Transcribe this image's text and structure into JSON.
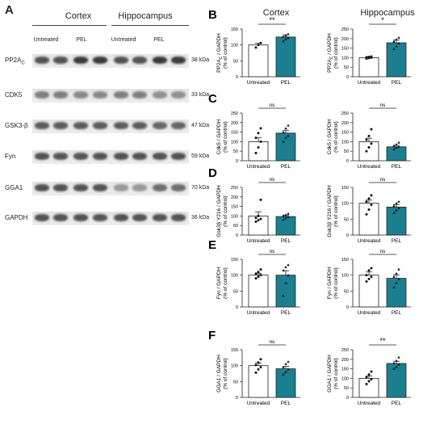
{
  "blot": {
    "letter": "A",
    "region_left": "Cortex",
    "region_right": "Hippocampus",
    "treatments": [
      "Untreated",
      "PEL",
      "Untreated",
      "PEL"
    ],
    "rows": [
      {
        "protein": "PP2A",
        "protein_sub": "C",
        "kda": "38 kDa",
        "intensity": [
          0.85,
          0.85,
          1.0,
          1.0,
          0.85,
          0.85,
          1.0,
          1.0
        ]
      },
      {
        "protein": "CDK5",
        "protein_sub": "",
        "kda": "33 kDa",
        "intensity": [
          0.6,
          0.6,
          0.55,
          0.55,
          0.6,
          0.6,
          0.5,
          0.5
        ]
      },
      {
        "protein": "GSK3-β",
        "protein_sub": "",
        "kda": "47 kDa",
        "intensity": [
          0.8,
          0.8,
          0.8,
          0.8,
          0.8,
          0.8,
          0.75,
          0.75
        ]
      },
      {
        "protein": "Fyn",
        "protein_sub": "",
        "kda": "59 kDa",
        "intensity": [
          0.85,
          0.85,
          0.85,
          0.85,
          0.85,
          0.85,
          0.85,
          0.85
        ]
      },
      {
        "protein": "GGA1",
        "protein_sub": "",
        "kda": "70 kDa",
        "intensity": [
          0.85,
          0.85,
          0.85,
          0.85,
          0.45,
          0.45,
          0.7,
          0.7
        ]
      },
      {
        "protein": "GAPDH",
        "protein_sub": "",
        "kda": "36 kDa",
        "intensity": [
          0.85,
          0.85,
          0.85,
          0.85,
          0.85,
          0.85,
          0.85,
          0.85
        ]
      }
    ]
  },
  "col_titles": [
    "Cortex",
    "Hippocampus"
  ],
  "colors": {
    "untreated": "#ffffff",
    "pel": "#1b7f8f",
    "edge": "#222222"
  },
  "chart_data": [
    {
      "type": "bar",
      "panel": "B",
      "categories": [
        "Untreated",
        "PEL"
      ],
      "values": [
        100,
        125
      ],
      "errors": [
        6,
        7
      ],
      "ylim": [
        0,
        150
      ],
      "yticks": [
        0,
        50,
        100,
        150
      ],
      "ylabel": "PP2A",
      "ylabel_sub": "C",
      "ylabel_rest": " / GAPDH",
      "ylabel2": "(% of control)",
      "sig": "**",
      "points": [
        [
          92,
          100,
          106
        ],
        [
          112,
          118,
          122,
          126,
          130,
          134
        ]
      ]
    },
    {
      "type": "bar",
      "panel": "",
      "categories": [
        "Untreated",
        "PEL"
      ],
      "values": [
        100,
        178
      ],
      "errors": [
        5,
        15
      ],
      "ylim": [
        0,
        250
      ],
      "yticks": [
        0,
        50,
        100,
        150,
        200,
        250
      ],
      "ylabel": "PP2A",
      "ylabel_sub": "C",
      "ylabel_rest": " / GAPDH",
      "ylabel2": "(% of control)",
      "sig": "*",
      "points": [
        [
          95,
          98,
          100,
          102,
          104,
          106
        ],
        [
          145,
          160,
          175,
          185,
          195,
          205
        ]
      ]
    },
    {
      "type": "bar",
      "panel": "C",
      "categories": [
        "Untreated",
        "PEL"
      ],
      "values": [
        100,
        145
      ],
      "errors": [
        20,
        15
      ],
      "ylim": [
        0,
        250
      ],
      "yticks": [
        0,
        50,
        100,
        150,
        200,
        250
      ],
      "ylabel": "Cdk5 / GAPDH",
      "ylabel_sub": "",
      "ylabel_rest": "",
      "ylabel2": "(% of control)",
      "sig": "ns",
      "points": [
        [
          40,
          70,
          100,
          120,
          145,
          170
        ],
        [
          100,
          120,
          130,
          150,
          170,
          185
        ]
      ]
    },
    {
      "type": "bar",
      "panel": "",
      "categories": [
        "Untreated",
        "PEL"
      ],
      "values": [
        100,
        73
      ],
      "errors": [
        18,
        8
      ],
      "ylim": [
        0,
        250
      ],
      "yticks": [
        0,
        50,
        100,
        150,
        200,
        250
      ],
      "ylabel": "Cdk5 / GAPDH",
      "ylabel_sub": "",
      "ylabel_rest": "",
      "ylabel2": "(% of control)",
      "sig": "ns",
      "points": [
        [
          50,
          70,
          90,
          110,
          130,
          165
        ],
        [
          60,
          68,
          73,
          78,
          85,
          95
        ]
      ]
    },
    {
      "type": "bar",
      "panel": "D",
      "categories": [
        "Untreated",
        "PEL"
      ],
      "values": [
        100,
        97
      ],
      "errors": [
        22,
        8
      ],
      "ylim": [
        0,
        250
      ],
      "yticks": [
        0,
        50,
        100,
        150,
        200,
        250
      ],
      "ylabel": "Gsk3β Y216 / GAPDH",
      "ylabel_sub": "",
      "ylabel_rest": "",
      "ylabel2": "(% of control)",
      "sig": "ns",
      "points": [
        [
          70,
          78,
          85,
          90,
          100,
          185
        ],
        [
          80,
          88,
          95,
          100,
          105,
          112
        ]
      ]
    },
    {
      "type": "bar",
      "panel": "",
      "categories": [
        "Untreated",
        "PEL"
      ],
      "values": [
        100,
        88
      ],
      "errors": [
        10,
        8
      ],
      "ylim": [
        0,
        150
      ],
      "yticks": [
        0,
        50,
        100,
        150
      ],
      "ylabel": "Gsk3β Y216 / GAPDH",
      "ylabel_sub": "",
      "ylabel_rest": "",
      "ylabel2": "(% of control)",
      "sig": "ns",
      "points": [
        [
          65,
          80,
          95,
          105,
          115,
          125
        ],
        [
          70,
          78,
          85,
          92,
          100,
          105
        ]
      ]
    },
    {
      "type": "bar",
      "panel": "E",
      "categories": [
        "Untreated",
        "PEL"
      ],
      "values": [
        100,
        100
      ],
      "errors": [
        6,
        14
      ],
      "ylim": [
        0,
        150
      ],
      "yticks": [
        0,
        50,
        100,
        150
      ],
      "ylabel": "Fyn / GAPDH",
      "ylabel_sub": "",
      "ylabel_rest": "",
      "ylabel2": "(% of control)",
      "sig": "ns",
      "points": [
        [
          90,
          95,
          100,
          105,
          110,
          118
        ],
        [
          35,
          75,
          100,
          115,
          125,
          132
        ]
      ]
    },
    {
      "type": "bar",
      "panel": "",
      "categories": [
        "Untreated",
        "PEL"
      ],
      "values": [
        100,
        90
      ],
      "errors": [
        10,
        10
      ],
      "ylim": [
        0,
        150
      ],
      "yticks": [
        0,
        50,
        100,
        150
      ],
      "ylabel": "Fyn / GAPDH",
      "ylabel_sub": "",
      "ylabel_rest": "",
      "ylabel2": "(% of control)",
      "sig": "ns",
      "points": [
        [
          80,
          88,
          95,
          100,
          115,
          122
        ],
        [
          62,
          75,
          88,
          95,
          105,
          118
        ]
      ]
    },
    {
      "type": "bar",
      "panel": "F",
      "categories": [
        "Untreated",
        "PEL"
      ],
      "values": [
        100,
        90
      ],
      "errors": [
        8,
        8
      ],
      "ylim": [
        0,
        150
      ],
      "yticks": [
        0,
        50,
        100,
        150
      ],
      "ylabel": "GGA1 / GAPDH",
      "ylabel_sub": "",
      "ylabel_rest": "",
      "ylabel2": "(% of control)",
      "sig": "ns",
      "points": [
        [
          78,
          88,
          95,
          102,
          110,
          120
        ],
        [
          72,
          80,
          88,
          95,
          105,
          112
        ]
      ]
    },
    {
      "type": "bar",
      "panel": "",
      "categories": [
        "Untreated",
        "PEL"
      ],
      "values": [
        100,
        178
      ],
      "errors": [
        12,
        12
      ],
      "ylim": [
        0,
        250
      ],
      "yticks": [
        0,
        50,
        100,
        150,
        200,
        250
      ],
      "ylabel": "GGA1 / GAPDH",
      "ylabel_sub": "",
      "ylabel_rest": "",
      "ylabel2": "(% of control)",
      "sig": "**",
      "points": [
        [
          70,
          85,
          95,
          105,
          120,
          135
        ],
        [
          150,
          160,
          172,
          180,
          192,
          210
        ]
      ]
    }
  ]
}
